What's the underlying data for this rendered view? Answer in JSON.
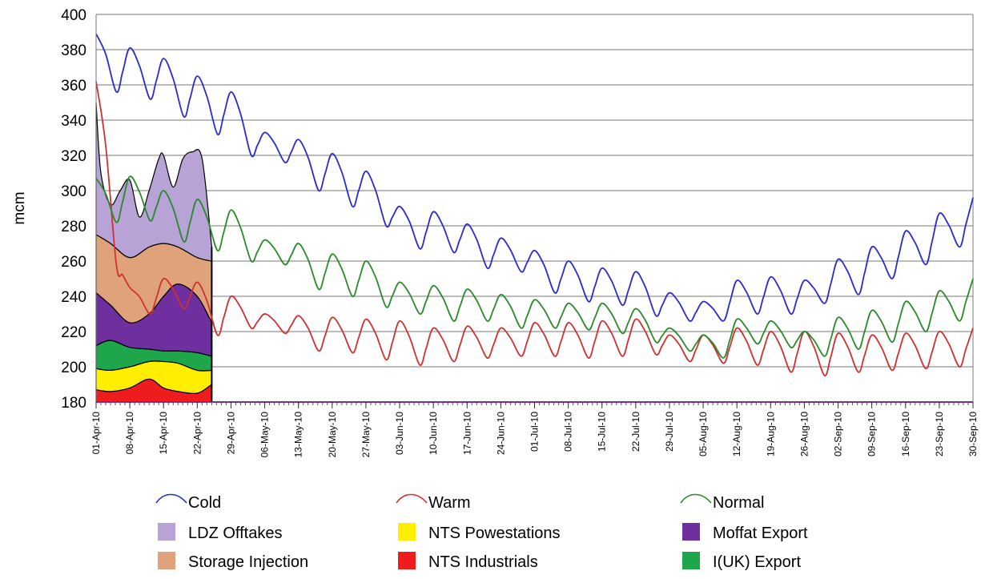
{
  "chart_data": {
    "type": "line",
    "title": "",
    "xlabel": "",
    "ylabel": "mcm",
    "ylim": [
      180,
      400
    ],
    "yticks": [
      180,
      200,
      220,
      240,
      260,
      280,
      300,
      320,
      340,
      360,
      380,
      400
    ],
    "xlim": [
      "01-Apr-10",
      "30-Sep-10"
    ],
    "x_tick_labels": [
      "01-Apr-10",
      "08-Apr-10",
      "15-Apr-10",
      "22-Apr-10",
      "29-Apr-10",
      "06-May-10",
      "13-May-10",
      "20-May-10",
      "27-May-10",
      "03-Jun-10",
      "10-Jun-10",
      "17-Jun-10",
      "24-Jun-10",
      "01-Jul-10",
      "08-Jul-10",
      "15-Jul-10",
      "22-Jul-10",
      "29-Jul-10",
      "05-Aug-10",
      "12-Aug-10",
      "19-Aug-10",
      "26-Aug-10",
      "02-Sep-10",
      "09-Sep-10",
      "16-Sep-10",
      "23-Sep-10",
      "30-Sep-10"
    ],
    "grid": "horizontal",
    "legend_position": "bottom",
    "series": [
      {
        "name": "Cold",
        "kind": "line",
        "color": "#2a2ad0",
        "dates": [
          "01-Apr-10",
          "08-Apr-10",
          "15-Apr-10",
          "22-Apr-10",
          "29-Apr-10",
          "06-May-10",
          "13-May-10",
          "20-May-10",
          "27-May-10",
          "03-Jun-10",
          "10-Jun-10",
          "17-Jun-10",
          "24-Jun-10",
          "01-Jul-10",
          "08-Jul-10",
          "15-Jul-10",
          "22-Jul-10",
          "29-Jul-10",
          "05-Aug-10",
          "12-Aug-10",
          "19-Aug-10",
          "26-Aug-10",
          "02-Sep-10",
          "09-Sep-10",
          "16-Sep-10",
          "23-Sep-10",
          "30-Sep-10"
        ],
        "weekly_peak": [
          389,
          381,
          375,
          365,
          356,
          333,
          329,
          321,
          311,
          291,
          288,
          281,
          273,
          266,
          260,
          256,
          254,
          242,
          237,
          249,
          251,
          249,
          261,
          268,
          277,
          287,
          296
        ],
        "weekly_trough": [
          356,
          352,
          342,
          332,
          320,
          316,
          300,
          291,
          280,
          267,
          265,
          256,
          254,
          242,
          237,
          235,
          229,
          226,
          226,
          230,
          230,
          236,
          241,
          250,
          258,
          268,
          272
        ]
      },
      {
        "name": "Warm",
        "kind": "line",
        "color": "#d03030",
        "dates": [
          "01-Apr-10",
          "08-Apr-10",
          "15-Apr-10",
          "22-Apr-10",
          "29-Apr-10",
          "06-May-10",
          "13-May-10",
          "20-May-10",
          "27-May-10",
          "03-Jun-10",
          "10-Jun-10",
          "17-Jun-10",
          "24-Jun-10",
          "01-Jul-10",
          "08-Jul-10",
          "15-Jul-10",
          "22-Jul-10",
          "29-Jul-10",
          "05-Aug-10",
          "12-Aug-10",
          "19-Aug-10",
          "26-Aug-10",
          "02-Sep-10",
          "09-Sep-10",
          "16-Sep-10",
          "23-Sep-10",
          "30-Sep-10"
        ],
        "weekly_peak": [
          362,
          245,
          250,
          248,
          240,
          230,
          229,
          228,
          227,
          226,
          222,
          223,
          222,
          225,
          225,
          226,
          227,
          218,
          218,
          222,
          220,
          220,
          219,
          218,
          219,
          220,
          222
        ],
        "weekly_trough": [
          258,
          230,
          233,
          218,
          222,
          219,
          209,
          208,
          204,
          201,
          203,
          205,
          206,
          206,
          205,
          206,
          207,
          203,
          202,
          201,
          197,
          195,
          197,
          198,
          199,
          200,
          202
        ]
      },
      {
        "name": "Normal",
        "kind": "line",
        "color": "#2a8a2a",
        "dates": [
          "01-Apr-10",
          "08-Apr-10",
          "15-Apr-10",
          "22-Apr-10",
          "29-Apr-10",
          "06-May-10",
          "13-May-10",
          "20-May-10",
          "27-May-10",
          "03-Jun-10",
          "10-Jun-10",
          "17-Jun-10",
          "24-Jun-10",
          "01-Jul-10",
          "08-Jul-10",
          "15-Jul-10",
          "22-Jul-10",
          "29-Jul-10",
          "05-Aug-10",
          "12-Aug-10",
          "19-Aug-10",
          "26-Aug-10",
          "02-Sep-10",
          "09-Sep-10",
          "16-Sep-10",
          "23-Sep-10",
          "30-Sep-10"
        ],
        "weekly_peak": [
          307,
          308,
          300,
          295,
          289,
          272,
          270,
          264,
          260,
          248,
          246,
          244,
          241,
          238,
          236,
          236,
          233,
          222,
          218,
          227,
          226,
          220,
          228,
          232,
          237,
          243,
          250
        ],
        "weekly_trough": [
          282,
          283,
          271,
          266,
          260,
          258,
          244,
          240,
          234,
          230,
          226,
          226,
          222,
          222,
          221,
          219,
          214,
          209,
          205,
          213,
          211,
          206,
          210,
          214,
          220,
          226,
          229
        ]
      },
      {
        "name": "NTS Industrials",
        "kind": "stacked_area",
        "color": "#ee1c1c",
        "dates": [
          "01-Apr-10",
          "04-Apr-10",
          "08-Apr-10",
          "12-Apr-10",
          "15-Apr-10",
          "18-Apr-10",
          "22-Apr-10",
          "25-Apr-10"
        ],
        "values": [
          187,
          186,
          188,
          193,
          188,
          186,
          185,
          190
        ]
      },
      {
        "name": "NTS Powestations",
        "kind": "stacked_area",
        "color": "#ffee00",
        "dates": [
          "01-Apr-10",
          "04-Apr-10",
          "08-Apr-10",
          "12-Apr-10",
          "15-Apr-10",
          "18-Apr-10",
          "22-Apr-10",
          "25-Apr-10"
        ],
        "values": [
          199,
          198,
          200,
          203,
          203,
          202,
          198,
          198
        ]
      },
      {
        "name": "I(UK) Export",
        "kind": "stacked_area",
        "color": "#1ea64a",
        "dates": [
          "01-Apr-10",
          "04-Apr-10",
          "08-Apr-10",
          "12-Apr-10",
          "15-Apr-10",
          "18-Apr-10",
          "22-Apr-10",
          "25-Apr-10"
        ],
        "values": [
          212,
          215,
          211,
          210,
          209,
          209,
          208,
          206
        ]
      },
      {
        "name": "Moffat Export",
        "kind": "stacked_area",
        "color": "#6f2f9e",
        "dates": [
          "01-Apr-10",
          "04-Apr-10",
          "08-Apr-10",
          "12-Apr-10",
          "15-Apr-10",
          "18-Apr-10",
          "22-Apr-10",
          "25-Apr-10"
        ],
        "values": [
          242,
          235,
          225,
          230,
          240,
          247,
          240,
          225
        ]
      },
      {
        "name": "Storage Injection",
        "kind": "stacked_area",
        "color": "#e0a27a",
        "dates": [
          "01-Apr-10",
          "04-Apr-10",
          "08-Apr-10",
          "12-Apr-10",
          "15-Apr-10",
          "18-Apr-10",
          "22-Apr-10",
          "25-Apr-10"
        ],
        "values": [
          275,
          270,
          262,
          268,
          270,
          268,
          262,
          260
        ]
      },
      {
        "name": "LDZ Offtakes",
        "kind": "stacked_area",
        "color": "#b7a3d6",
        "dates": [
          "01-Apr-10",
          "02-Apr-10",
          "04-Apr-10",
          "06-Apr-10",
          "08-Apr-10",
          "10-Apr-10",
          "12-Apr-10",
          "14-Apr-10",
          "15-Apr-10",
          "17-Apr-10",
          "19-Apr-10",
          "21-Apr-10",
          "23-Apr-10",
          "25-Apr-10"
        ],
        "values": [
          350,
          310,
          292,
          300,
          306,
          285,
          300,
          318,
          320,
          302,
          318,
          322,
          318,
          268
        ]
      }
    ],
    "legend": [
      {
        "label": "Cold",
        "symbol": "line",
        "color": "#2a2ad0"
      },
      {
        "label": "Warm",
        "symbol": "line",
        "color": "#d03030"
      },
      {
        "label": "Normal",
        "symbol": "line",
        "color": "#2a8a2a"
      },
      {
        "label": "LDZ Offtakes",
        "symbol": "square",
        "color": "#b7a3d6"
      },
      {
        "label": "NTS Powestations",
        "symbol": "square",
        "color": "#ffee00"
      },
      {
        "label": "Moffat Export",
        "symbol": "square",
        "color": "#6f2f9e"
      },
      {
        "label": "Storage Injection",
        "symbol": "square",
        "color": "#e0a27a"
      },
      {
        "label": "NTS Industrials",
        "symbol": "square",
        "color": "#ee1c1c"
      },
      {
        "label": "I(UK) Export",
        "symbol": "square",
        "color": "#1ea64a"
      }
    ]
  }
}
